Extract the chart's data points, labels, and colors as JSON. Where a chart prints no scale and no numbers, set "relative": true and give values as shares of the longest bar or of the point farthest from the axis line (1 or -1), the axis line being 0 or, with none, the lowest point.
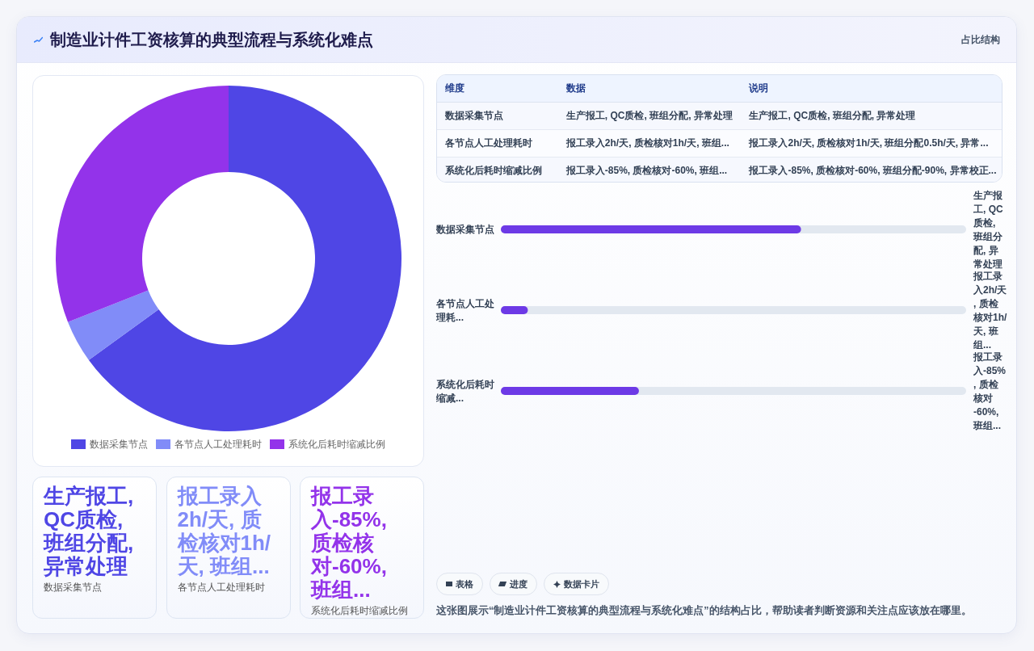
{
  "chart_data": [
    {
      "type": "other",
      "title": "制造业计件工资核算的典型流程与系统化难点",
      "subtitle": "占比结构"
    },
    {
      "type": "donut",
      "categories": [
        "数据采集节点",
        "各节点人工处理耗时",
        "系统化后耗时缩减比例"
      ],
      "values": [
        65,
        4,
        31
      ],
      "colors": [
        "#4f46e5",
        "#818cf8",
        "#9333ea"
      ],
      "legend": "bottom"
    },
    {
      "type": "other",
      "categories": [
        "数据采集节点",
        "各节点人工处理耗时",
        "系统化后耗时缩减比例"
      ],
      "value_labels": [
        "生产报工, QC质检, 班组分配, 异常处理",
        "报工录入2h/天, 质检核对1h/天, 班组...",
        "报工录入-85%, 质检核对-60%, 班组..."
      ]
    },
    {
      "type": "other",
      "categories": [
        "维度",
        "数据",
        "说明"
      ],
      "cell_labels": [
        [
          "数据采集节点",
          "生产报工, QC质检, 班组分配, 异常处理",
          "生产报工, QC质检, 班组分配, 异常处理"
        ],
        [
          "各节点人工处理耗时",
          "报工录入2h/天, 质检核对1h/天, 班组...",
          "报工录入2h/天, 质检核对1h/天, 班组分配0.5h/天, 异常..."
        ],
        [
          "系统化后耗时缩减比例",
          "报工录入-85%, 质检核对-60%, 班组...",
          "报工录入-85%, 质检核对-60%, 班组分配-90%, 异常校正..."
        ]
      ]
    },
    {
      "type": "bar",
      "orientation": "horizontal",
      "relative": true,
      "categories": [
        "数据采集节点",
        "各节点人工处理耗...",
        "系统化后耗时缩减..."
      ],
      "y2_categories": [
        "生产报工, QC质检, 班组分配, 异常处理",
        "报工录入2h/天, 质检核对1h/天, 班组...",
        "报工录入-85%, 质检核对-60%, 班组..."
      ],
      "values": [
        1,
        0.09,
        0.46
      ],
      "color": "#6d3ae6",
      "annotations": [
        "表格",
        "进度",
        "数据卡片",
        "这张图展示“制造业计件工资核算的典型流程与系统化难点”的结构占比，帮助读者判断资源和关注点应该放在哪里。"
      ]
    }
  ]
}
